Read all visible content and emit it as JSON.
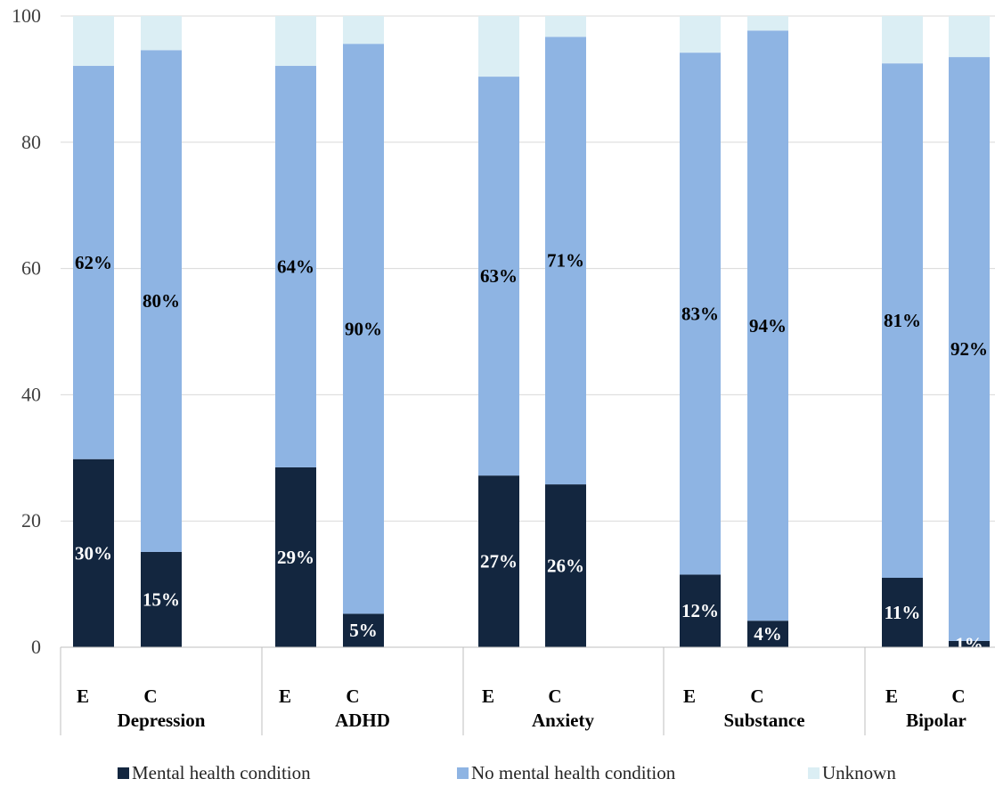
{
  "chart_data": {
    "type": "bar",
    "stacked": true,
    "ylim": [
      0,
      100
    ],
    "yticks": [
      0,
      20,
      40,
      60,
      80,
      100
    ],
    "grid": true,
    "legend_position": "bottom",
    "groups": [
      "Depression",
      "ADHD",
      "Anxiety",
      "Substance",
      "Bipolar"
    ],
    "subcategories": [
      "E",
      "C"
    ],
    "series": [
      {
        "name": "Mental health condition",
        "color": "#13263f",
        "label_color": "#ffffff",
        "values": [
          29.8,
          15.1,
          28.5,
          5.3,
          27.2,
          25.8,
          11.5,
          4.2,
          11.0,
          1.0
        ],
        "labels": [
          "30%",
          "15%",
          "29%",
          "5%",
          "27%",
          "26%",
          "12%",
          "4%",
          "11%",
          "1%"
        ]
      },
      {
        "name": "No mental health condition",
        "color": "#8eb4e3",
        "label_color": "#000000",
        "values": [
          62.3,
          79.5,
          63.6,
          90.3,
          63.2,
          70.9,
          82.7,
          93.5,
          81.5,
          92.5
        ],
        "labels": [
          "62%",
          "80%",
          "64%",
          "90%",
          "63%",
          "71%",
          "83%",
          "94%",
          "81%",
          "92%"
        ]
      },
      {
        "name": "Unknown",
        "color": "#dbeef4",
        "label_color": "#000000",
        "values": [
          7.9,
          5.4,
          7.9,
          4.4,
          9.6,
          3.3,
          5.8,
          2.3,
          7.5,
          6.5
        ],
        "labels": [
          "",
          "",
          "",
          "",
          "",
          "",
          "",
          "",
          "",
          ""
        ]
      }
    ]
  }
}
